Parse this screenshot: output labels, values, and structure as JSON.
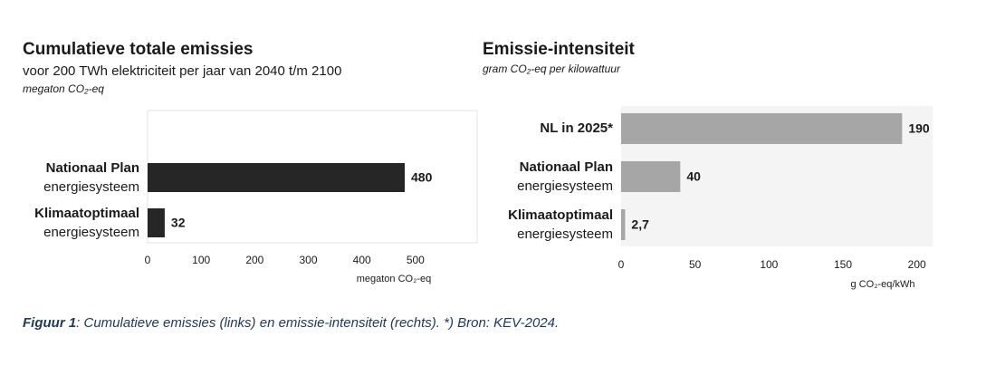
{
  "chart_data": [
    {
      "type": "hbar",
      "title": "Cumulatieve totale emissies",
      "subtitle": "voor 200 TWh elektriciteit per jaar van 2040 t/m 2100",
      "unit_label": "megaton CO₂-eq",
      "categories": [
        "Nationaal Plan",
        "Klimaatoptimaal"
      ],
      "category_sublabels": [
        "energiesysteem",
        "energiesysteem"
      ],
      "values": [
        480,
        32
      ],
      "color": "#262626",
      "xlim": [
        0,
        600
      ],
      "xticks": [
        0,
        100,
        200,
        300,
        400,
        500
      ],
      "xlabel": "megaton CO₂-eq"
    },
    {
      "type": "hbar",
      "title": "Emissie-intensiteit",
      "subtitle": "gram CO₂-eq per kilowattuur",
      "categories": [
        "NL in 2025*",
        "Nationaal Plan",
        "Klimaatoptimaal"
      ],
      "category_sublabels": [
        null,
        "energiesysteem",
        "energiesysteem"
      ],
      "values": [
        190,
        40,
        2.7
      ],
      "value_labels": [
        "190",
        "40",
        "2,7"
      ],
      "color": "#a6a6a6",
      "xlim": [
        0,
        210
      ],
      "xticks": [
        0,
        50,
        100,
        150,
        200
      ],
      "xlabel": "g CO₂-eq/kWh"
    }
  ],
  "caption": {
    "label": "Figuur 1",
    "text": ": Cumulatieve emissies (links) en emissie-intensiteit (rechts). *) Bron: KEV-2024."
  }
}
